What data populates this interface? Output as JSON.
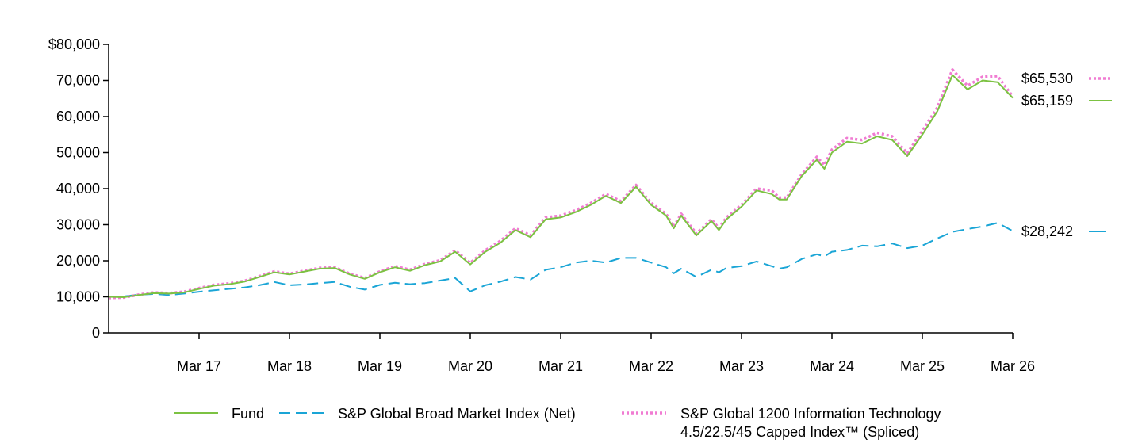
{
  "chart_data": {
    "type": "line",
    "title": "",
    "xlabel": "",
    "ylabel": "",
    "ylim": [
      0,
      80000
    ],
    "y_ticks": [
      0,
      10000,
      20000,
      30000,
      40000,
      50000,
      60000,
      70000,
      80000
    ],
    "y_tick_labels": [
      "0",
      "10,000",
      "20,000",
      "30,000",
      "40,000",
      "50,000",
      "60,000",
      "70,000",
      "$80,000"
    ],
    "x_start": "2016-03",
    "x_end": "2026-03",
    "x_ticks": [
      "2017-03",
      "2018-03",
      "2019-03",
      "2020-03",
      "2021-03",
      "2022-03",
      "2023-03",
      "2024-03",
      "2025-03",
      "2026-03"
    ],
    "x_tick_labels": [
      "Mar 17",
      "Mar 18",
      "Mar 19",
      "Mar 20",
      "Mar 21",
      "Mar 22",
      "Mar 23",
      "Mar 24",
      "Mar 25",
      "Mar 26"
    ],
    "legend_position": "bottom",
    "grid": false,
    "series": [
      {
        "name": "Fund",
        "color": "#7cc242",
        "style": "solid",
        "end_label": "$65,159",
        "points": [
          [
            "2016-03",
            10000
          ],
          [
            "2016-05",
            9900
          ],
          [
            "2016-07",
            10500
          ],
          [
            "2016-09",
            11000
          ],
          [
            "2016-11",
            10900
          ],
          [
            "2017-01",
            11200
          ],
          [
            "2017-03",
            12200
          ],
          [
            "2017-05",
            13100
          ],
          [
            "2017-07",
            13500
          ],
          [
            "2017-09",
            14200
          ],
          [
            "2017-11",
            15500
          ],
          [
            "2018-01",
            16800
          ],
          [
            "2018-03",
            16200
          ],
          [
            "2018-05",
            17000
          ],
          [
            "2018-07",
            17800
          ],
          [
            "2018-09",
            18000
          ],
          [
            "2018-11",
            16200
          ],
          [
            "2019-01",
            15000
          ],
          [
            "2019-03",
            16800
          ],
          [
            "2019-05",
            18200
          ],
          [
            "2019-07",
            17200
          ],
          [
            "2019-09",
            18800
          ],
          [
            "2019-11",
            19800
          ],
          [
            "2020-01",
            22500
          ],
          [
            "2020-03",
            19000
          ],
          [
            "2020-05",
            22500
          ],
          [
            "2020-07",
            25000
          ],
          [
            "2020-09",
            28500
          ],
          [
            "2020-11",
            26500
          ],
          [
            "2021-01",
            31500
          ],
          [
            "2021-03",
            32000
          ],
          [
            "2021-05",
            33500
          ],
          [
            "2021-07",
            35500
          ],
          [
            "2021-09",
            38000
          ],
          [
            "2021-11",
            36000
          ],
          [
            "2022-01",
            40500
          ],
          [
            "2022-03",
            35500
          ],
          [
            "2022-05",
            32500
          ],
          [
            "2022-06",
            29000
          ],
          [
            "2022-07",
            32500
          ],
          [
            "2022-09",
            27000
          ],
          [
            "2022-11",
            31000
          ],
          [
            "2022-12",
            28500
          ],
          [
            "2023-01",
            31500
          ],
          [
            "2023-03",
            35000
          ],
          [
            "2023-05",
            39500
          ],
          [
            "2023-07",
            38500
          ],
          [
            "2023-08",
            37000
          ],
          [
            "2023-09",
            37000
          ],
          [
            "2023-11",
            43500
          ],
          [
            "2024-01",
            48000
          ],
          [
            "2024-02",
            45500
          ],
          [
            "2024-03",
            50000
          ],
          [
            "2024-05",
            53000
          ],
          [
            "2024-07",
            52500
          ],
          [
            "2024-09",
            54500
          ],
          [
            "2024-11",
            53500
          ],
          [
            "2025-01",
            49000
          ],
          [
            "2025-03",
            55000
          ],
          [
            "2025-05",
            61500
          ],
          [
            "2025-07",
            71500
          ],
          [
            "2025-09",
            67500
          ],
          [
            "2025-11",
            70000
          ],
          [
            "2026-01",
            69500
          ],
          [
            "2026-03",
            65159
          ]
        ]
      },
      {
        "name": "S&P Global Broad Market Index (Net)",
        "color": "#1aa5d6",
        "style": "dashed",
        "end_label": "$28,242",
        "points": [
          [
            "2016-03",
            10000
          ],
          [
            "2016-05",
            10100
          ],
          [
            "2016-07",
            10600
          ],
          [
            "2016-09",
            10800
          ],
          [
            "2016-11",
            10500
          ],
          [
            "2017-01",
            10900
          ],
          [
            "2017-03",
            11400
          ],
          [
            "2017-05",
            11800
          ],
          [
            "2017-07",
            12200
          ],
          [
            "2017-09",
            12600
          ],
          [
            "2017-11",
            13200
          ],
          [
            "2018-01",
            14100
          ],
          [
            "2018-03",
            13200
          ],
          [
            "2018-05",
            13400
          ],
          [
            "2018-07",
            13800
          ],
          [
            "2018-09",
            14100
          ],
          [
            "2018-11",
            12800
          ],
          [
            "2019-01",
            12000
          ],
          [
            "2019-03",
            13300
          ],
          [
            "2019-05",
            13900
          ],
          [
            "2019-07",
            13500
          ],
          [
            "2019-09",
            13800
          ],
          [
            "2019-11",
            14500
          ],
          [
            "2020-01",
            15200
          ],
          [
            "2020-03",
            11500
          ],
          [
            "2020-05",
            13200
          ],
          [
            "2020-07",
            14200
          ],
          [
            "2020-09",
            15500
          ],
          [
            "2020-11",
            14800
          ],
          [
            "2021-01",
            17500
          ],
          [
            "2021-03",
            18200
          ],
          [
            "2021-05",
            19500
          ],
          [
            "2021-07",
            20000
          ],
          [
            "2021-09",
            19500
          ],
          [
            "2021-11",
            20800
          ],
          [
            "2022-01",
            20800
          ],
          [
            "2022-03",
            19500
          ],
          [
            "2022-05",
            18200
          ],
          [
            "2022-06",
            16500
          ],
          [
            "2022-07",
            17800
          ],
          [
            "2022-09",
            15500
          ],
          [
            "2022-11",
            17500
          ],
          [
            "2022-12",
            16800
          ],
          [
            "2023-01",
            18000
          ],
          [
            "2023-03",
            18500
          ],
          [
            "2023-05",
            19800
          ],
          [
            "2023-07",
            18500
          ],
          [
            "2023-08",
            17800
          ],
          [
            "2023-09",
            18200
          ],
          [
            "2023-11",
            20500
          ],
          [
            "2024-01",
            21800
          ],
          [
            "2024-02",
            21200
          ],
          [
            "2024-03",
            22500
          ],
          [
            "2024-05",
            23000
          ],
          [
            "2024-07",
            24200
          ],
          [
            "2024-09",
            24000
          ],
          [
            "2024-11",
            24800
          ],
          [
            "2025-01",
            23500
          ],
          [
            "2025-03",
            24200
          ],
          [
            "2025-05",
            26200
          ],
          [
            "2025-07",
            28000
          ],
          [
            "2025-09",
            28800
          ],
          [
            "2025-11",
            29500
          ],
          [
            "2026-01",
            30500
          ],
          [
            "2026-03",
            28242
          ]
        ]
      },
      {
        "name": "S&P Global 1200 Information Technology 4.5/22.5/45 Capped Index™ (Spliced)",
        "legend_lines": [
          "S&P Global 1200 Information Technology",
          "4.5/22.5/45 Capped Index™ (Spliced)"
        ],
        "color": "#f07cd2",
        "style": "dotted",
        "end_label": "$65,530",
        "points": [
          [
            "2016-03",
            9700
          ],
          [
            "2016-05",
            9800
          ],
          [
            "2016-07",
            10600
          ],
          [
            "2016-09",
            11200
          ],
          [
            "2016-11",
            11000
          ],
          [
            "2017-01",
            11400
          ],
          [
            "2017-03",
            12400
          ],
          [
            "2017-05",
            13300
          ],
          [
            "2017-07",
            13700
          ],
          [
            "2017-09",
            14400
          ],
          [
            "2017-11",
            15700
          ],
          [
            "2018-01",
            17000
          ],
          [
            "2018-03",
            16400
          ],
          [
            "2018-05",
            17200
          ],
          [
            "2018-07",
            18000
          ],
          [
            "2018-09",
            18200
          ],
          [
            "2018-11",
            16400
          ],
          [
            "2019-01",
            15200
          ],
          [
            "2019-03",
            17000
          ],
          [
            "2019-05",
            18500
          ],
          [
            "2019-07",
            17500
          ],
          [
            "2019-09",
            19100
          ],
          [
            "2019-11",
            20100
          ],
          [
            "2020-01",
            22900
          ],
          [
            "2020-03",
            19400
          ],
          [
            "2020-05",
            22900
          ],
          [
            "2020-07",
            25500
          ],
          [
            "2020-09",
            29000
          ],
          [
            "2020-11",
            27000
          ],
          [
            "2021-01",
            32000
          ],
          [
            "2021-03",
            32500
          ],
          [
            "2021-05",
            34000
          ],
          [
            "2021-07",
            36000
          ],
          [
            "2021-09",
            38500
          ],
          [
            "2021-11",
            36500
          ],
          [
            "2022-01",
            41000
          ],
          [
            "2022-03",
            36000
          ],
          [
            "2022-05",
            33000
          ],
          [
            "2022-06",
            29500
          ],
          [
            "2022-07",
            33000
          ],
          [
            "2022-09",
            27500
          ],
          [
            "2022-11",
            31500
          ],
          [
            "2022-12",
            29000
          ],
          [
            "2023-01",
            32000
          ],
          [
            "2023-03",
            35500
          ],
          [
            "2023-05",
            40000
          ],
          [
            "2023-07",
            39500
          ],
          [
            "2023-08",
            37500
          ],
          [
            "2023-09",
            37500
          ],
          [
            "2023-11",
            44000
          ],
          [
            "2024-01",
            48800
          ],
          [
            "2024-02",
            46500
          ],
          [
            "2024-03",
            50800
          ],
          [
            "2024-05",
            54000
          ],
          [
            "2024-07",
            53500
          ],
          [
            "2024-09",
            55500
          ],
          [
            "2024-11",
            54500
          ],
          [
            "2025-01",
            49800
          ],
          [
            "2025-03",
            56000
          ],
          [
            "2025-05",
            62500
          ],
          [
            "2025-07",
            73000
          ],
          [
            "2025-09",
            68500
          ],
          [
            "2025-11",
            71000
          ],
          [
            "2026-01",
            71200
          ],
          [
            "2026-03",
            65530
          ]
        ]
      }
    ]
  }
}
